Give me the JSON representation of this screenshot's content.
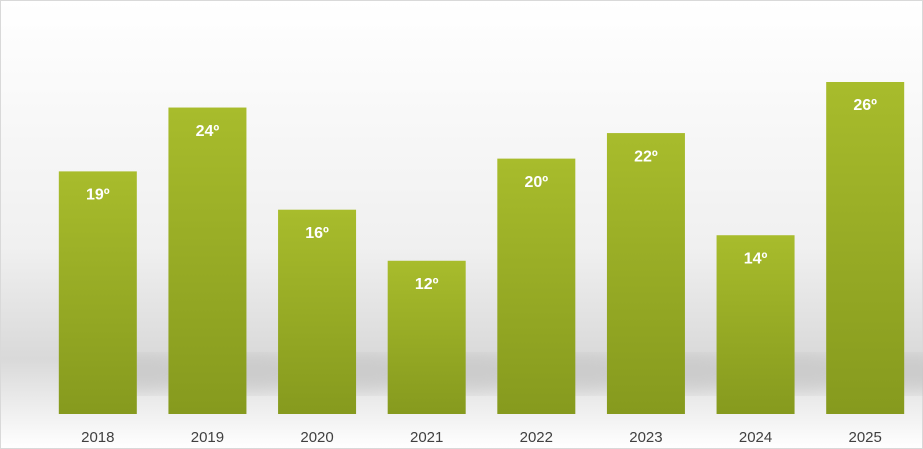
{
  "chart_data": {
    "type": "bar",
    "categories": [
      "2018",
      "2019",
      "2020",
      "2021",
      "2022",
      "2023",
      "2024",
      "2025"
    ],
    "values": [
      19,
      24,
      16,
      12,
      20,
      22,
      14,
      26
    ],
    "value_labels": [
      "19º",
      "24º",
      "16º",
      "12º",
      "20º",
      "22º",
      "14º",
      "26º"
    ],
    "color": "#a8bc2c"
  }
}
